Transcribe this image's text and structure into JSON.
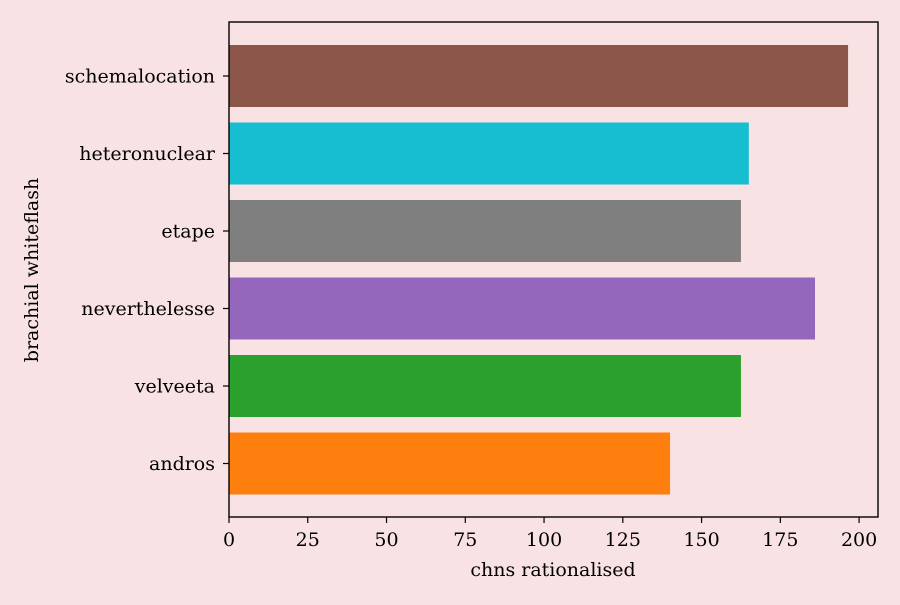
{
  "chart_data": {
    "type": "bar",
    "orientation": "horizontal",
    "title": "",
    "xlabel": "chns rationalised",
    "ylabel": "brachial whiteflash",
    "xlim": [
      0,
      206
    ],
    "xticks": [
      0,
      25,
      50,
      75,
      100,
      125,
      150,
      175,
      200
    ],
    "categories": [
      "andros",
      "velveeta",
      "neverthelesse",
      "etape",
      "heteronuclear",
      "schemalocation"
    ],
    "values": [
      140,
      162.5,
      186,
      162.5,
      165,
      196.5
    ],
    "colors": [
      "#ff7f0e",
      "#2ca02c",
      "#9467bd",
      "#7f7f7f",
      "#17becf",
      "#8c564b"
    ],
    "grid": false,
    "background": "#f9e2e3"
  }
}
